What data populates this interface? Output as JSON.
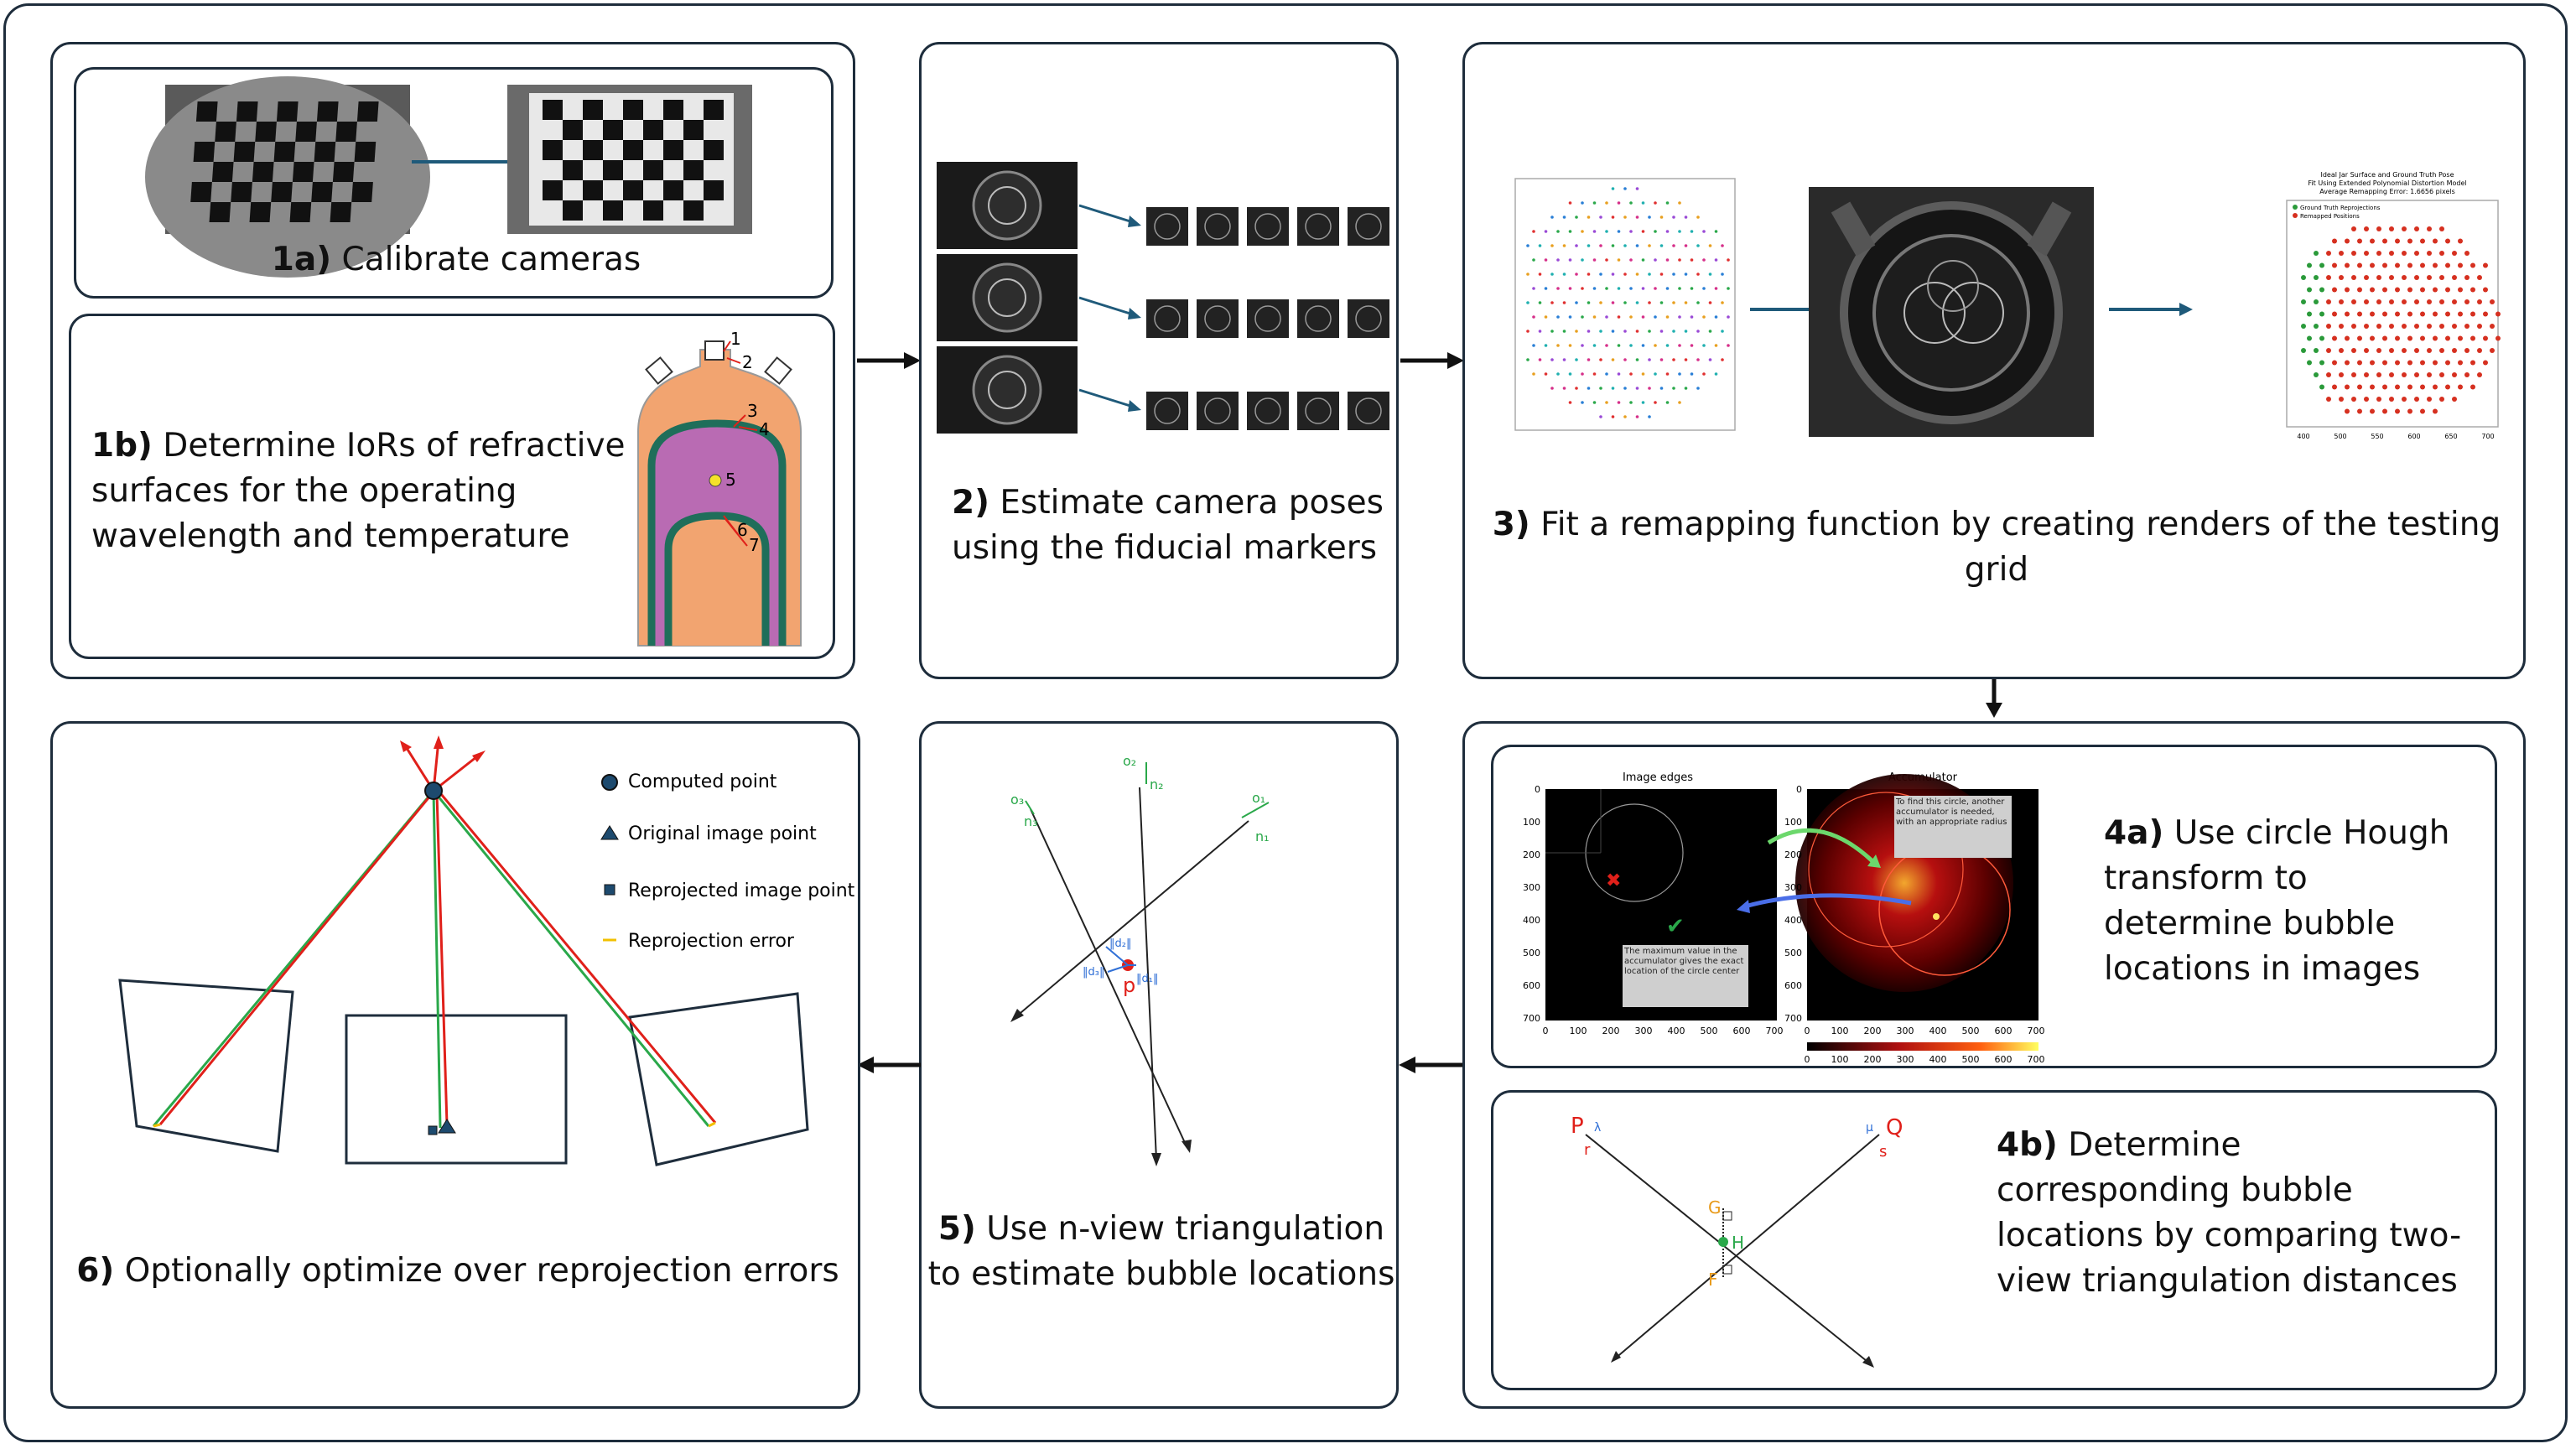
{
  "steps": {
    "s1a": {
      "num": "1a)",
      "text": "Calibrate cameras"
    },
    "s1b": {
      "num": "1b)",
      "text": "Determine IoRs of refractive surfaces for the operating wavelength and temperature",
      "labels": [
        "1",
        "2",
        "3",
        "4",
        "5",
        "6",
        "7"
      ]
    },
    "s2": {
      "num": "2)",
      "text": "Estimate camera poses using the fiducial markers"
    },
    "s3": {
      "num": "3)",
      "text": "Fit a remapping function by creating renders of the testing grid"
    },
    "s4a": {
      "num": "4a)",
      "text": "Use circle Hough transform to determine bubble locations in images"
    },
    "s4b": {
      "num": "4b)",
      "text": "Determine corresponding bubble locations by comparing two-view triangulation distances"
    },
    "s5": {
      "num": "5)",
      "text": "Use n-view triangulation to estimate bubble locations"
    },
    "s6": {
      "num": "6)",
      "text": "Optionally optimize over reprojection errors"
    }
  },
  "hough": {
    "left_title": "Image edges",
    "right_title": "Accumulator",
    "y_ticks": [
      "0",
      "100",
      "200",
      "300",
      "400",
      "500",
      "600",
      "700"
    ],
    "x_ticks": [
      "0",
      "100",
      "200",
      "300",
      "400",
      "500",
      "600",
      "700"
    ],
    "note_left": "The maximum value in the accumulator gives the exact location of the circle center",
    "note_right": "To find this circle, another accumulator is needed, with an appropriate radius",
    "colorbar_ticks": [
      "0",
      "100",
      "200",
      "300",
      "400",
      "500",
      "600",
      "700"
    ]
  },
  "remap_plot": {
    "title_lines": [
      "Ideal Jar Surface and Ground Truth Pose",
      "Fit Using Extended Polynomial Distortion Model",
      "Average Remapping Error: 1.6656 pixels"
    ],
    "legend": [
      "Ground Truth Reprojections",
      "Remapped Positions"
    ],
    "x_ticks": [
      "400",
      "500",
      "550",
      "600",
      "650",
      "700"
    ]
  },
  "legend6": {
    "computed": "Computed point",
    "original": "Original image point",
    "reprojected": "Reprojected image point",
    "error": "Reprojection error"
  },
  "tri5": {
    "o1": "o₁",
    "o2": "o₂",
    "o3": "o₃",
    "n1": "n₁",
    "n2": "n₂",
    "n3": "n₃",
    "p": "p",
    "d1": "‖d₁‖",
    "d2": "‖d₂‖",
    "d3": "‖d₃‖"
  },
  "tri4b": {
    "P": "P",
    "Q": "Q",
    "r": "r",
    "s": "s",
    "lambda": "λ",
    "mu": "μ",
    "G": "G",
    "H": "H",
    "F": "F"
  },
  "colors": {
    "border": "#1e2d3c",
    "arrow_teal": "#1f5a7a",
    "red": "#e0201a",
    "green": "#2aa84a",
    "blue": "#2f6fd6",
    "orange": "#f2a470",
    "purple": "#b96bb3",
    "teal_band": "#1f6e5a"
  }
}
